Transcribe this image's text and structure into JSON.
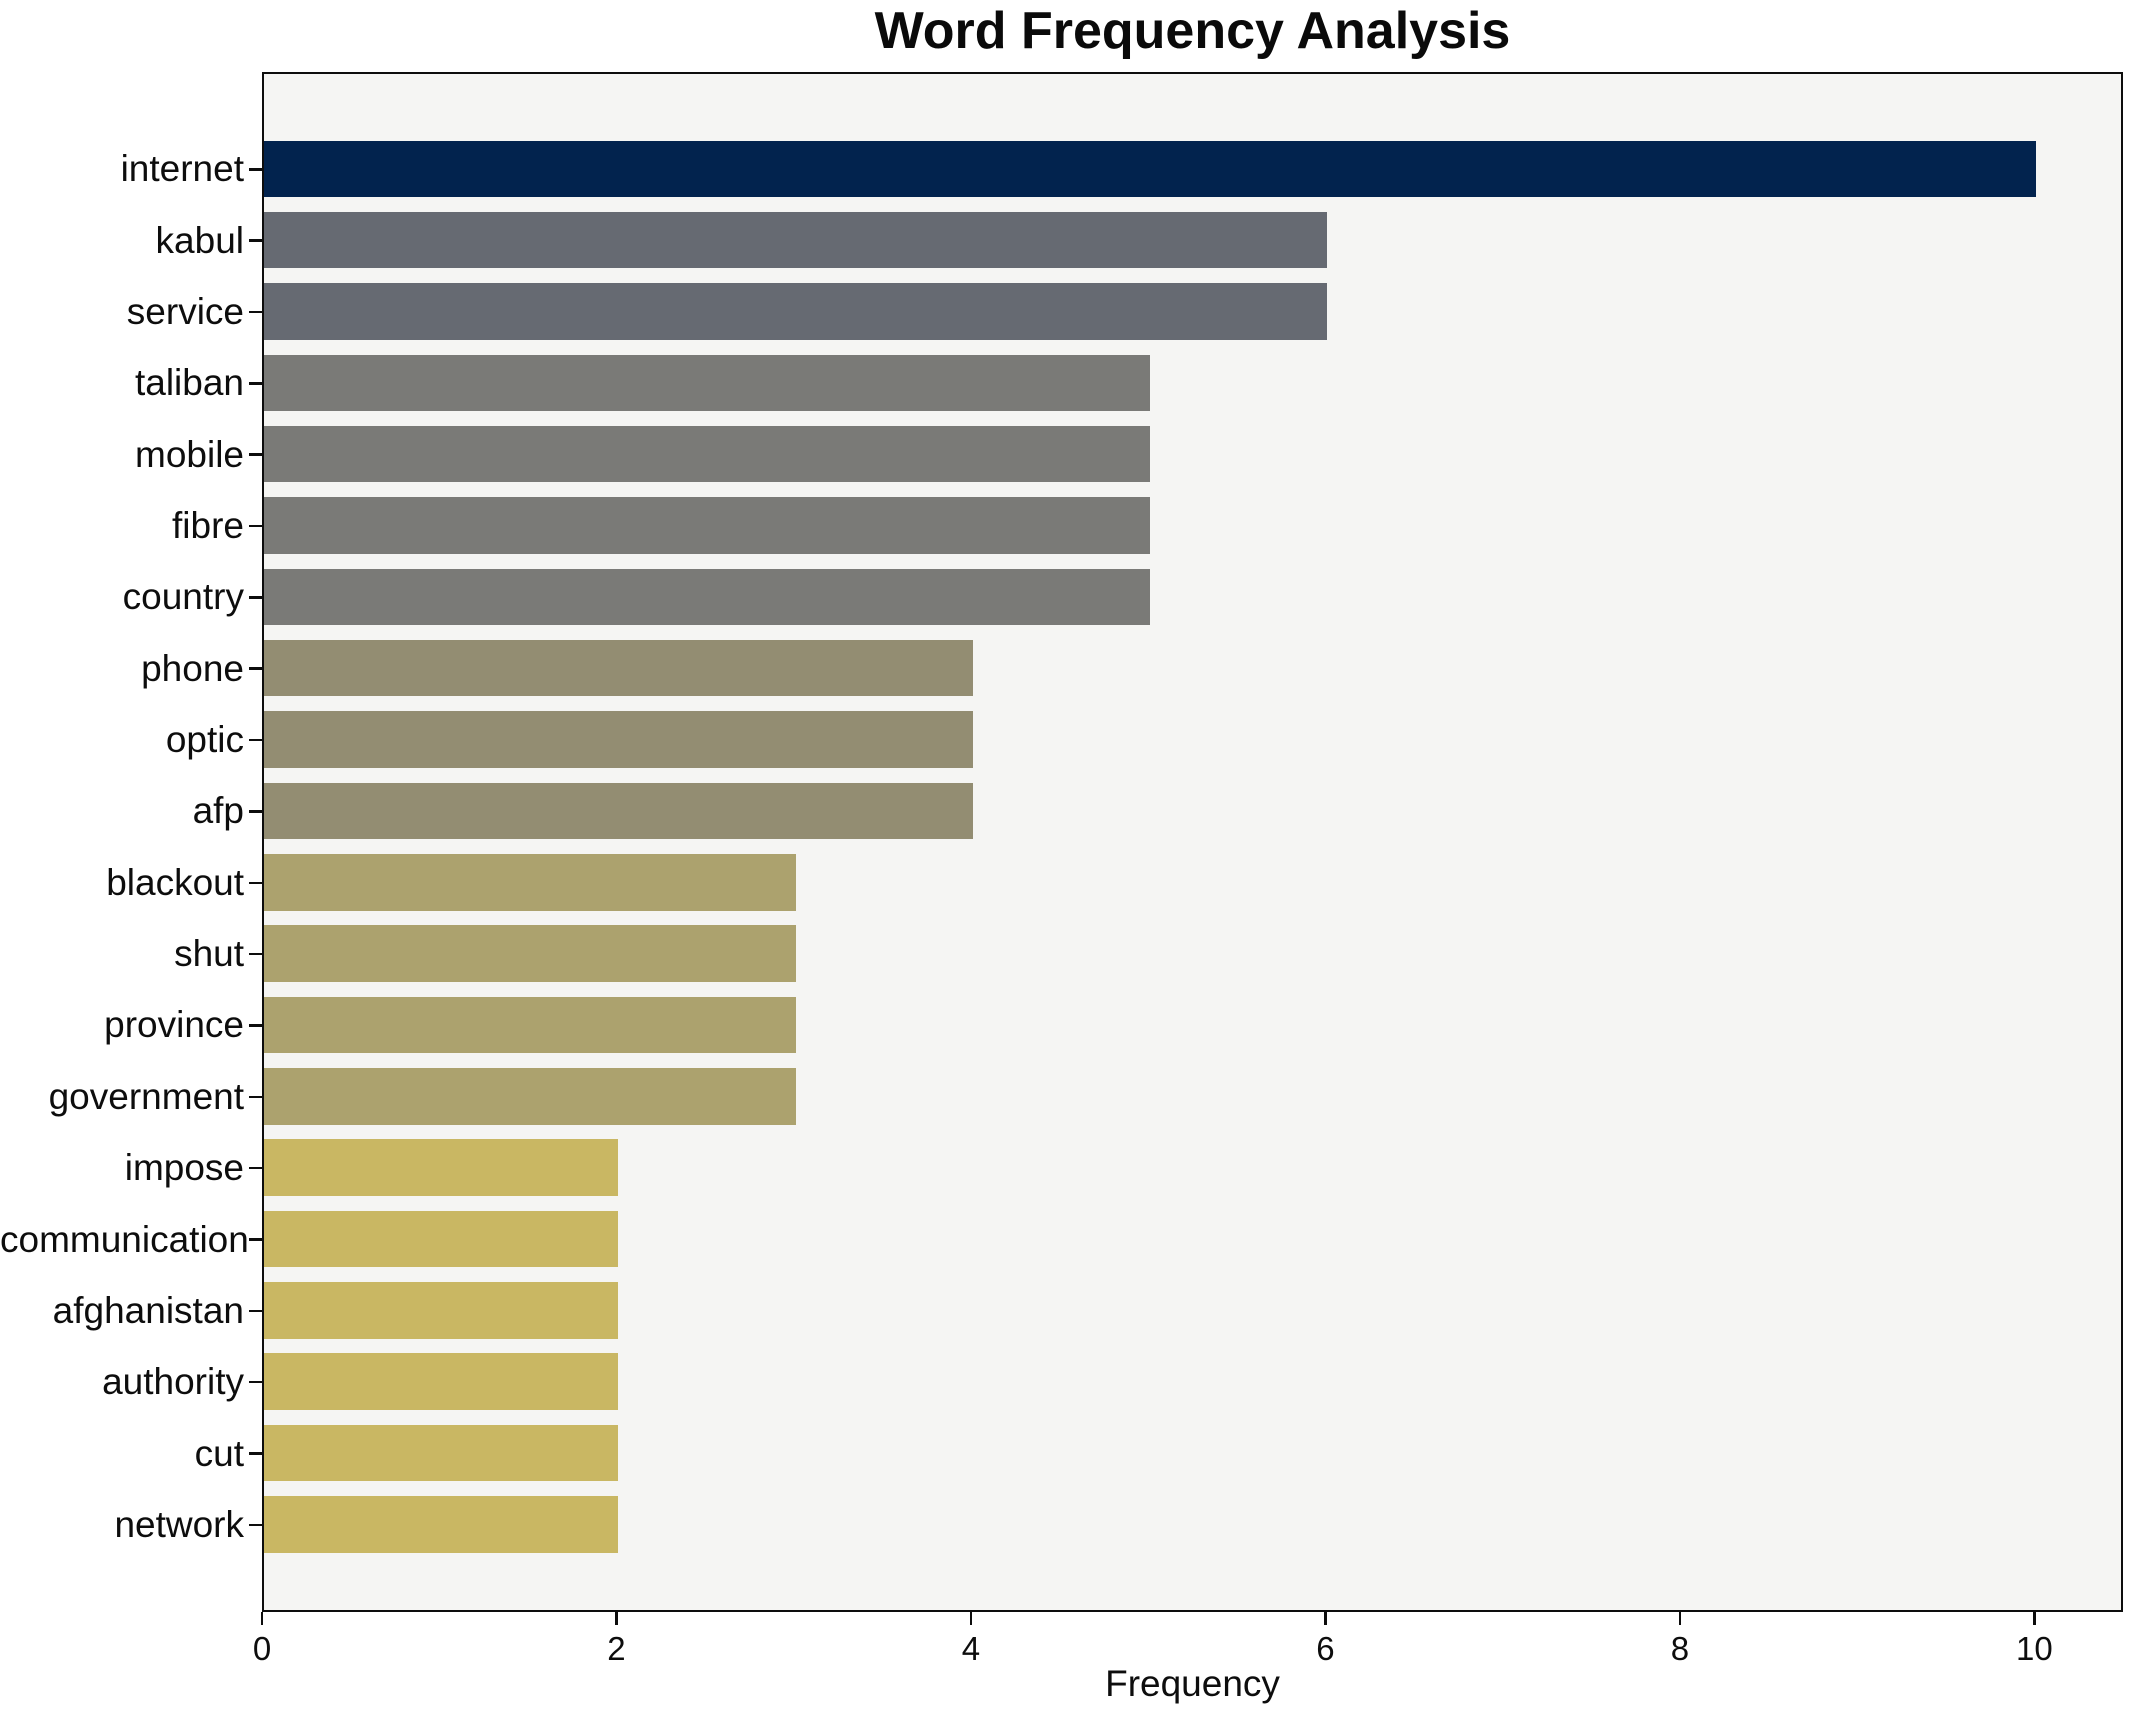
{
  "chart_data": {
    "type": "bar",
    "orientation": "horizontal",
    "title": "Word Frequency Analysis",
    "xlabel": "Frequency",
    "ylabel": "",
    "categories": [
      "internet",
      "kabul",
      "service",
      "taliban",
      "mobile",
      "fibre",
      "country",
      "phone",
      "optic",
      "afp",
      "blackout",
      "shut",
      "province",
      "government",
      "impose",
      "communication",
      "afghanistan",
      "authority",
      "cut",
      "network"
    ],
    "values": [
      10,
      6,
      6,
      5,
      5,
      5,
      5,
      4,
      4,
      4,
      3,
      3,
      3,
      3,
      2,
      2,
      2,
      2,
      2,
      2
    ],
    "xlim": [
      0,
      10.5
    ],
    "xticks": [
      0,
      2,
      4,
      6,
      8,
      10
    ],
    "grid": false,
    "legend": null,
    "colors": {
      "bar_color_by_value": {
        "10": "#02234e",
        "6": "#666a72",
        "5": "#7a7a77",
        "4": "#938d72",
        "3": "#aca26e",
        "2": "#c9b763"
      },
      "plot_background": "#f5f5f3",
      "figure_background": "#ffffff",
      "spine": "#0d0d0d",
      "text": "#0d0d0d"
    }
  }
}
